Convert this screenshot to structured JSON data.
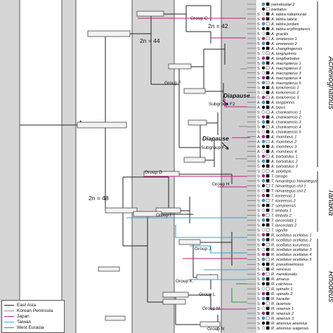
{
  "clades": [
    {
      "name": "Acheilognathus"
    },
    {
      "name": "Tanakia"
    },
    {
      "name": "Rhodeus"
    }
  ],
  "annotations": {
    "chromo_42": "2n = 42",
    "chromo_44": "2n = 44",
    "chromo_48": "2n = 48",
    "diapause": "Diapause",
    "asterisk": "*"
  },
  "groups": [
    {
      "label": "Group C"
    },
    {
      "label": "Group F"
    },
    {
      "label": "Subgroup F2"
    },
    {
      "label": "Subgroup F1"
    },
    {
      "label": "Group G"
    },
    {
      "label": "Group H"
    },
    {
      "label": "Group I"
    },
    {
      "label": "Group J"
    },
    {
      "label": "Group K"
    },
    {
      "label": "Group L"
    },
    {
      "label": "Group M"
    },
    {
      "label": "Group N"
    }
  ],
  "legend": [
    {
      "label": "East Asia",
      "color": "#222222"
    },
    {
      "label": "Korean Peninsula",
      "color": "#8a8a8a"
    },
    {
      "label": "Japan",
      "color": "#c2188a"
    },
    {
      "label": "Taiwan",
      "color": "#2aa7df"
    },
    {
      "label": "West Eurasia",
      "color": "#2e9e3e"
    }
  ],
  "tips": [
    {
      "prefix": "",
      "name": "yamatsutae 2"
    },
    {
      "prefix": "",
      "name": "barbatus"
    },
    {
      "prefix": "S",
      "name": "A. tabira nakamurae"
    },
    {
      "prefix": "S",
      "name": "A. tabira tabira"
    },
    {
      "prefix": "S",
      "name": "A. tabira jordani"
    },
    {
      "prefix": "S",
      "name": "A. tabira erythropterus"
    },
    {
      "prefix": "S",
      "name": "A. gracilis"
    },
    {
      "prefix": "S",
      "name": "A. omeiensis 1"
    },
    {
      "prefix": "S",
      "name": "A. omeiensis 2"
    },
    {
      "prefix": "S",
      "name": "A. changtingensis"
    },
    {
      "prefix": "S",
      "name": "A. longispinnis"
    },
    {
      "prefix": "S",
      "name": "A. longibarbatus"
    },
    {
      "prefix": "S",
      "name": "A. macropterus 1"
    },
    {
      "prefix": "S",
      "name": "A. macropterus 2"
    },
    {
      "prefix": "S",
      "name": "A. macropterus 3"
    },
    {
      "prefix": "S",
      "name": "A. macropterus 4"
    },
    {
      "prefix": "S",
      "name": "A. macropterus 5"
    },
    {
      "prefix": "S",
      "name": "A. tonkinensis 1"
    },
    {
      "prefix": "S",
      "name": "A. tonkinensis 2"
    },
    {
      "prefix": "S",
      "name": "A. tonkinensis 3"
    },
    {
      "prefix": "A",
      "name": "A. longipinnis"
    },
    {
      "prefix": "A",
      "name": "A. typus"
    },
    {
      "prefix": "S",
      "name": "A. chankaensis 1"
    },
    {
      "prefix": "S",
      "name": "A. chankaensis 2"
    },
    {
      "prefix": "S",
      "name": "A. chankaensis 3"
    },
    {
      "prefix": "S",
      "name": "A. chankaensis 4"
    },
    {
      "prefix": "S",
      "name": "A. chankaensis 5"
    },
    {
      "prefix": "A",
      "name": "A. rhombeus 1"
    },
    {
      "prefix": "A",
      "name": "A. rhombeus 2"
    },
    {
      "prefix": "A",
      "name": "A. rhombeus 3"
    },
    {
      "prefix": "A",
      "name": "A. rhombeus 4"
    },
    {
      "prefix": "S",
      "name": "A. barbatulus 1"
    },
    {
      "prefix": "S",
      "name": "A. barbatulus 2"
    },
    {
      "prefix": "S",
      "name": "A. barbatulus 3"
    },
    {
      "prefix": "S",
      "name": "A. polylepis"
    },
    {
      "prefix": "S",
      "name": "T. tanago"
    },
    {
      "prefix": "S",
      "name": "T. himantegus himantegus"
    },
    {
      "prefix": "S",
      "name": "T. himantegus chii 1"
    },
    {
      "prefix": "S",
      "name": "T. himantegus chii 2"
    },
    {
      "prefix": "S",
      "name": "T. koreensis 1"
    },
    {
      "prefix": "S",
      "name": "T. koreensis 2"
    },
    {
      "prefix": "S",
      "name": "T. somjinensis"
    },
    {
      "prefix": "S",
      "name": "T. limbata 1"
    },
    {
      "prefix": "S",
      "name": "T. limbata 2"
    },
    {
      "prefix": "S",
      "name": "T. lanceolata 1"
    },
    {
      "prefix": "S",
      "name": "T. lanceolata 2"
    },
    {
      "prefix": "S",
      "name": "T. signifer"
    },
    {
      "prefix": "S",
      "name": "R. ocellatus ocellatus 1"
    },
    {
      "prefix": "S",
      "name": "R. ocellatus ocellatus 2"
    },
    {
      "prefix": "S",
      "name": "R. ocellatus kurumeus"
    },
    {
      "prefix": "S",
      "name": "R. ocellatus ocellatus 3"
    },
    {
      "prefix": "S",
      "name": "R. ocellatus ocellatus 4"
    },
    {
      "prefix": "S",
      "name": "R. ocellatus ocellatus 5"
    },
    {
      "prefix": "S",
      "name": "R. pseudosericeus"
    },
    {
      "prefix": "S",
      "name": "R. sericeus"
    },
    {
      "prefix": "S",
      "name": "R. meridionalis"
    },
    {
      "prefix": "S",
      "name": "R. amarus"
    },
    {
      "prefix": "S",
      "name": "R. colchicus"
    },
    {
      "prefix": "S",
      "name": "R. spinalis 1"
    },
    {
      "prefix": "S",
      "name": "R. spinalis 2"
    },
    {
      "prefix": "S",
      "name": "R. haradai"
    },
    {
      "prefix": "S",
      "name": "R. laoensis"
    },
    {
      "prefix": "S",
      "name": "R. sinensis 1"
    },
    {
      "prefix": "S",
      "name": "R. sinensis 2"
    },
    {
      "prefix": "S",
      "name": "R. sinensis 3"
    },
    {
      "prefix": "S",
      "name": "R. atremius atremius"
    },
    {
      "prefix": "S",
      "name": "R. atremius suigensis"
    }
  ]
}
